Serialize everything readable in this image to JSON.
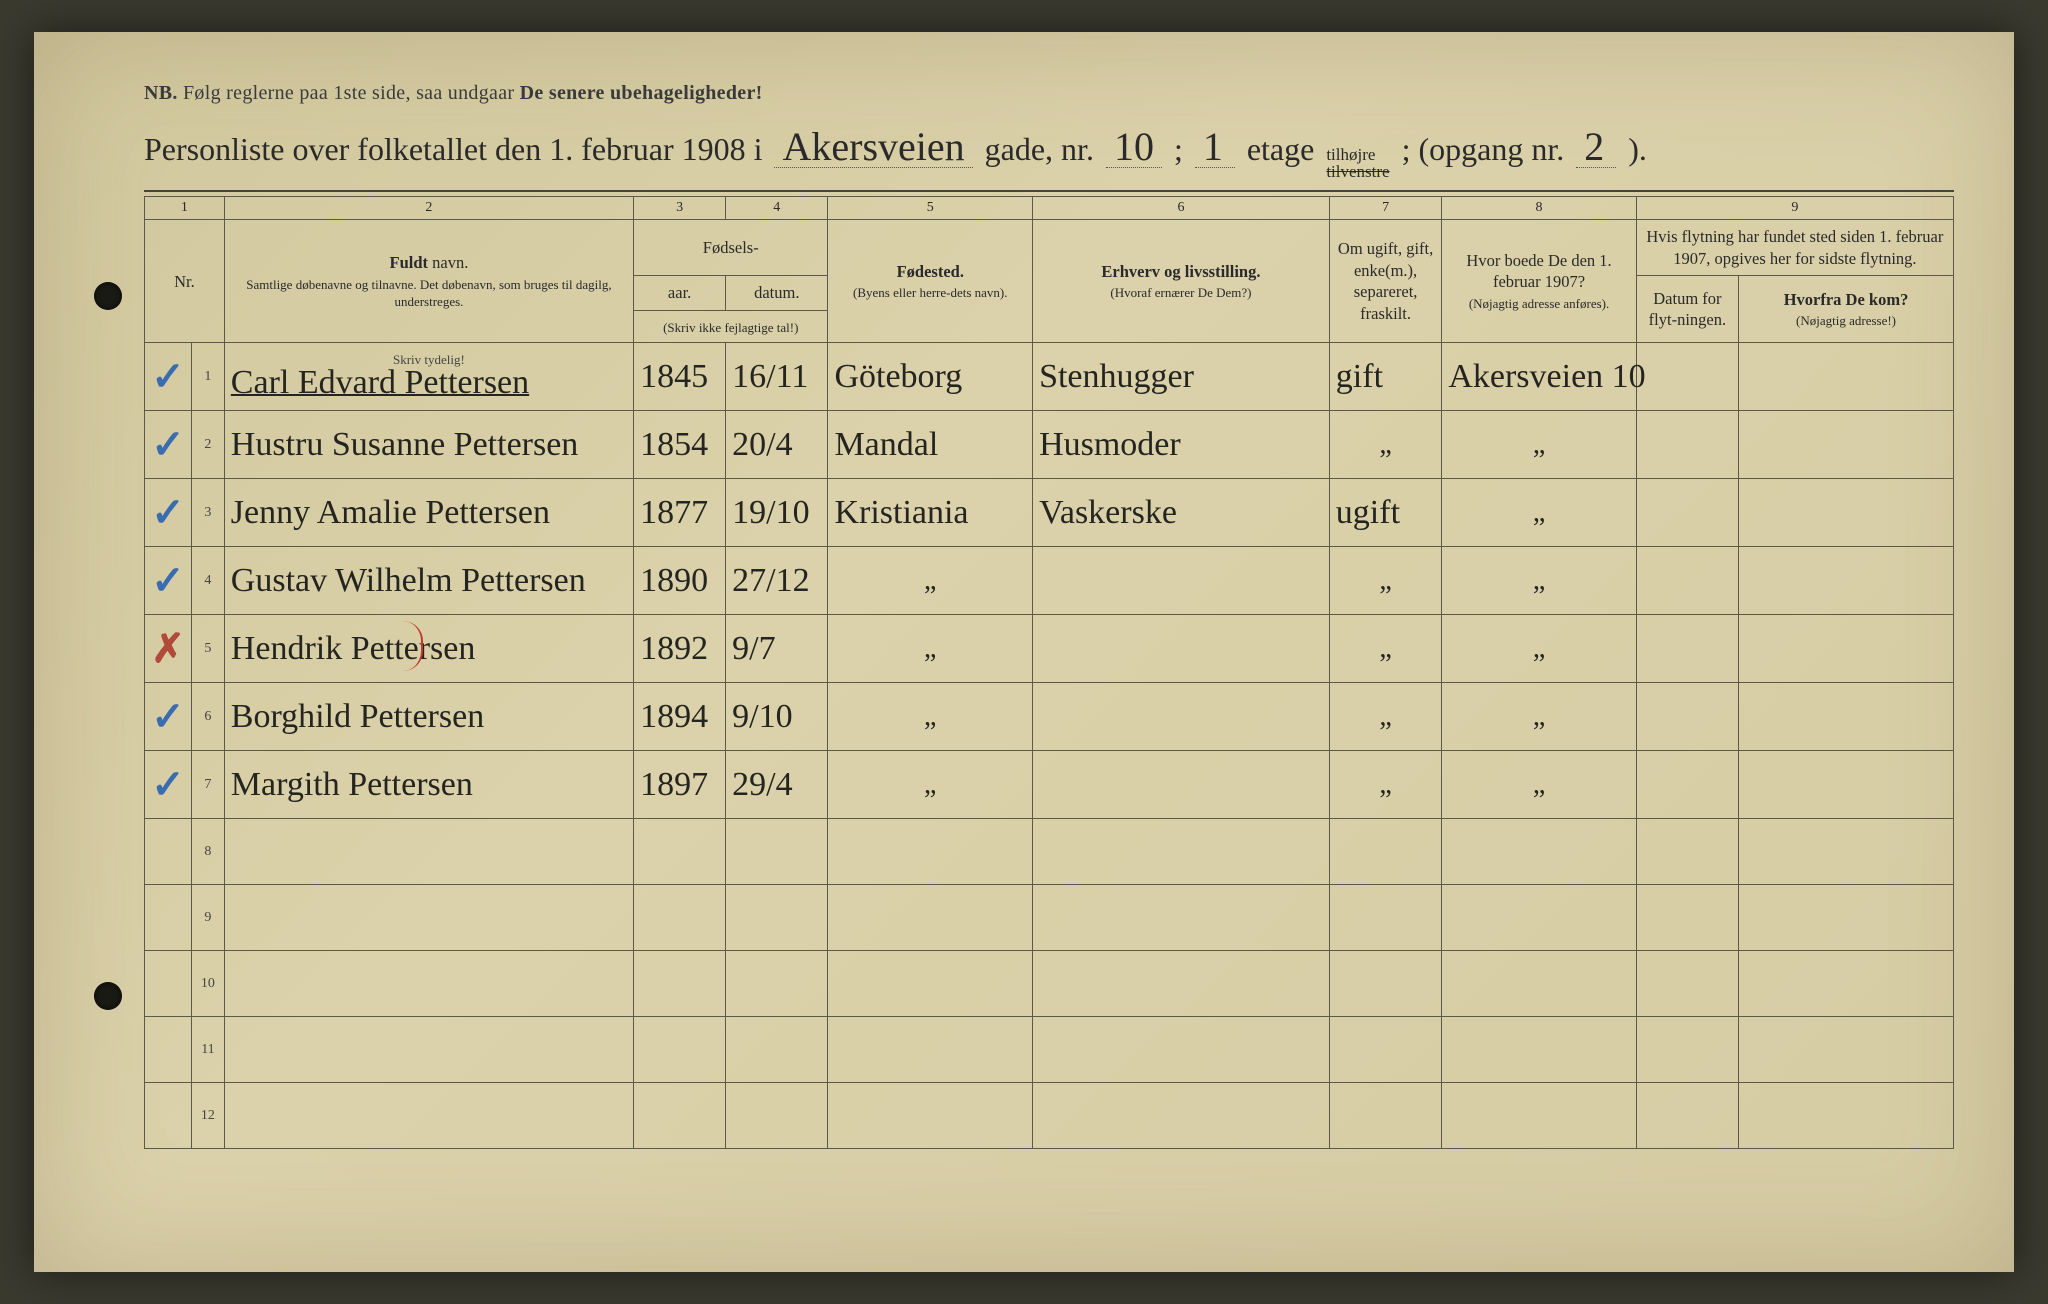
{
  "page": {
    "background_color": "#d9cfa8",
    "ink_color": "#2a2a2a",
    "blue_pencil": "#3a6db0",
    "red_pencil": "#b04a3a",
    "border_color": "#5a5a4a"
  },
  "nb": {
    "prefix": "NB.",
    "text1": "Følg reglerne paa 1ste side, saa undgaar ",
    "text2": "De senere ubehageligheder!"
  },
  "title": {
    "t1": "Personliste over folketallet den 1. februar 1908 i",
    "street_hand": "Akersveien",
    "t2": "gade, nr.",
    "nr_hand": "10",
    "t3": ";",
    "floor_hand": "1",
    "t4": "etage",
    "side_top": "tilhøjre",
    "side_bottom": "tilvenstre",
    "t5": "; (opgang nr.",
    "opgang_hand": "2",
    "t6": ")."
  },
  "columns": {
    "numbers": [
      "1",
      "2",
      "3",
      "4",
      "5",
      "6",
      "7",
      "8",
      "9"
    ],
    "fodsel": "Fødsels-",
    "aar": "aar.",
    "datum": "datum.",
    "aar_sub": "(Skriv ikke fejlagtige tal!)",
    "name_bold": "Fuldt",
    "name_rest": " navn.",
    "name_sub": "Samtlige døbenavne og tilnavne. Det døbenavn, som bruges til dagilg, understreges.",
    "birthplace": "Fødested.",
    "birthplace_sub": "(Byens eller herre-dets navn).",
    "occ": "Erhverv og livsstilling.",
    "occ_sub": "(Hvoraf ernærer De Dem?)",
    "marital": "Om ugift, gift, enke(m.), separeret, fraskilt.",
    "addr": "Hvor boede De den 1. februar 1907?",
    "addr_sub": "(Nøjagtig adresse anføres).",
    "move_top": "Hvis flytning har fundet sted siden 1. februar 1907, opgives her for sidste flytning.",
    "move_date": "Datum for flyt-ningen.",
    "move_from": "Hvorfra De kom?",
    "move_from_sub": "(Nøjagtig adresse!)",
    "nr": "Nr.",
    "skriv": "Skriv tydelig!"
  },
  "rows": [
    {
      "nr": "1",
      "mark": "✓",
      "mark_class": "check-blue",
      "name": "Carl Edvard Pettersen",
      "underline": true,
      "year": "1845",
      "date": "16/11",
      "birthplace": "Göteborg",
      "occupation": "Stenhugger",
      "marital": "gift",
      "address": "Akersveien 10",
      "movedate": "",
      "movefrom": ""
    },
    {
      "nr": "2",
      "mark": "✓",
      "mark_class": "check-blue",
      "name": "Hustru Susanne Pettersen",
      "year": "1854",
      "date": "20/4",
      "birthplace": "Mandal",
      "occupation": "Husmoder",
      "marital": "„",
      "address": "„",
      "movedate": "",
      "movefrom": ""
    },
    {
      "nr": "3",
      "mark": "✓",
      "mark_class": "check-blue",
      "name": "Jenny Amalie Pettersen",
      "year": "1877",
      "date": "19/10",
      "birthplace": "Kristiania",
      "occupation": "Vaskerske",
      "marital": "ugift",
      "address": "„",
      "movedate": "",
      "movefrom": ""
    },
    {
      "nr": "4",
      "mark": "✓",
      "mark_class": "check-blue",
      "name": "Gustav Wilhelm Pettersen",
      "year": "1890",
      "date": "27/12",
      "birthplace": "„",
      "occupation": "",
      "marital": "„",
      "address": "„",
      "movedate": "",
      "movefrom": ""
    },
    {
      "nr": "5",
      "mark": "✗",
      "mark_class": "x-red",
      "name": "Hendrik Pettersen",
      "red_bracket": true,
      "year": "1892",
      "date": "9/7",
      "birthplace": "„",
      "occupation": "",
      "marital": "„",
      "address": "„",
      "movedate": "",
      "movefrom": ""
    },
    {
      "nr": "6",
      "mark": "✓",
      "mark_class": "check-blue",
      "name": "Borghild Pettersen",
      "year": "1894",
      "date": "9/10",
      "birthplace": "„",
      "occupation": "",
      "marital": "„",
      "address": "„",
      "movedate": "",
      "movefrom": ""
    },
    {
      "nr": "7",
      "mark": "✓",
      "mark_class": "check-blue",
      "name": "Margith Pettersen",
      "year": "1897",
      "date": "29/4",
      "birthplace": "„",
      "occupation": "",
      "marital": "„",
      "address": "„",
      "movedate": "",
      "movefrom": ""
    }
  ],
  "empty_rows": [
    "8",
    "9",
    "10",
    "11",
    "12"
  ]
}
